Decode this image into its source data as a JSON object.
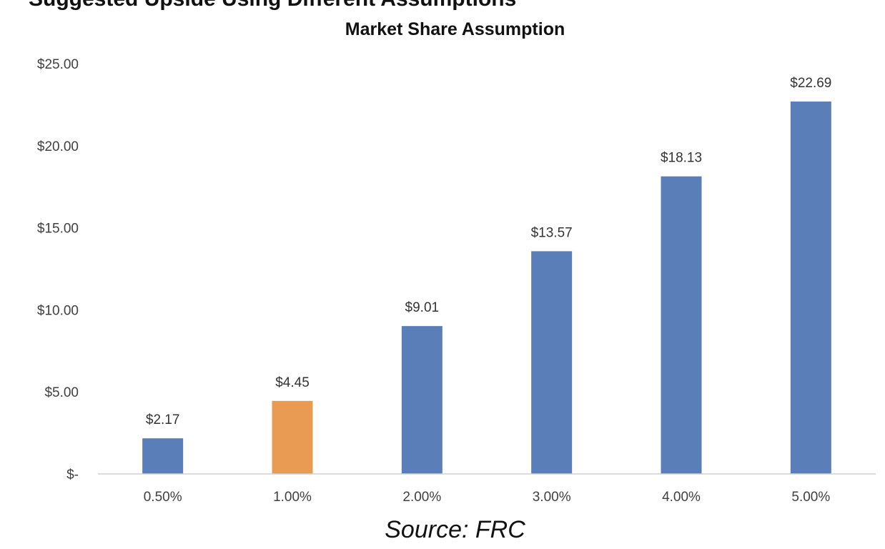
{
  "header": {
    "clipped_heading": "Suggested Upside Using Different Assumptions"
  },
  "chart_data": {
    "type": "bar",
    "title": "Market Share Assumption",
    "xlabel": "",
    "ylabel": "",
    "categories": [
      "0.50%",
      "1.00%",
      "2.00%",
      "3.00%",
      "4.00%",
      "5.00%"
    ],
    "values": [
      2.17,
      4.45,
      9.01,
      13.57,
      18.13,
      22.69
    ],
    "value_labels": [
      "$2.17",
      "$4.45",
      "$9.01",
      "$13.57",
      "$18.13",
      "$22.69"
    ],
    "highlight_index": 1,
    "ylim": [
      0,
      25
    ],
    "yticks": [
      0,
      5,
      10,
      15,
      20,
      25
    ],
    "ytick_labels": [
      "$-",
      "$5.00",
      "$10.00",
      "$15.00",
      "$20.00",
      "$25.00"
    ],
    "grid": false,
    "legend": "none",
    "colors": {
      "bar": "#5a7fb8",
      "highlight": "#e99b53",
      "axis": "#d0d0d0"
    }
  },
  "footer": {
    "source": "Source: FRC"
  }
}
